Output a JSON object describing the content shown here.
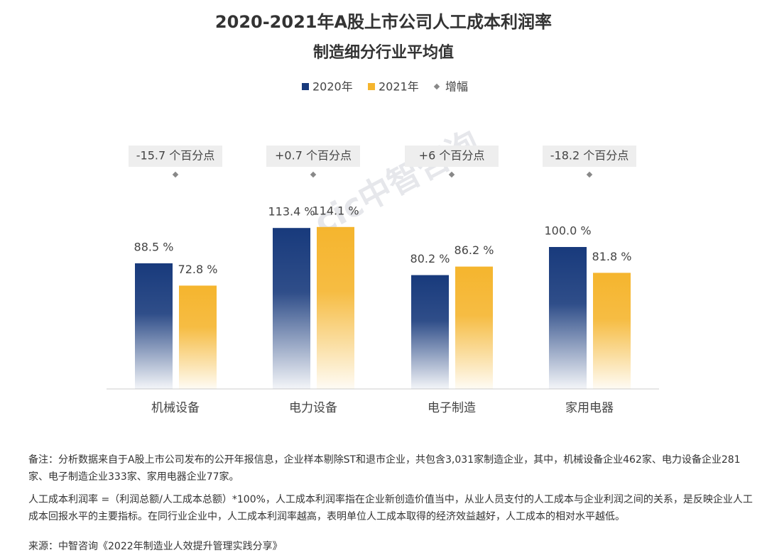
{
  "chart_data": {
    "type": "bar",
    "title": "2020-2021年A股上市公司人工成本利润率",
    "subtitle": "制造细分行业平均值",
    "categories": [
      "机械设备",
      "电力设备",
      "电子制造",
      "家用电器"
    ],
    "series": [
      {
        "name": "2020年",
        "color": "#183a7c",
        "values": [
          88.5,
          113.4,
          80.2,
          100.0
        ],
        "value_labels": [
          "88.5 %",
          "113.4 %",
          "80.2 %",
          "100.0 %"
        ]
      },
      {
        "name": "2021年",
        "color": "#f5b52e",
        "values": [
          72.8,
          114.1,
          86.2,
          81.8
        ],
        "value_labels": [
          "72.8 %",
          "114.1 %",
          "86.2 %",
          "81.8 %"
        ]
      },
      {
        "name": "增幅",
        "type": "diamond",
        "color": "#888888",
        "values": [
          -15.7,
          0.7,
          6,
          -18.2
        ],
        "value_labels": [
          "-15.7 个百分点",
          "+0.7 个百分点",
          "+6 个百分点",
          "-18.2 个百分点"
        ]
      }
    ],
    "watermark": "cic中智咨询"
  },
  "notes": [
    "备注：分析数据来自于A股上市公司发布的公开年报信息，企业样本剔除ST和退市企业，共包含3,031家制造企业，其中，机械设备企业462家、电力设备企业281家、电子制造企业333家、家用电器企业77家。",
    "人工成本利润率 =（利润总额/人工成本总额）*100%，人工成本利润率指在企业新创造价值当中，从业人员支付的人工成本与企业利润之间的关系，是反映企业人工成本回报水平的主要指标。在同行业企业中，人工成本利润率越高，表明单位人工成本取得的经济效益越好，人工成本的相对水平越低。"
  ],
  "source": "来源：中智咨询《2022年制造业人效提升管理实践分享》"
}
